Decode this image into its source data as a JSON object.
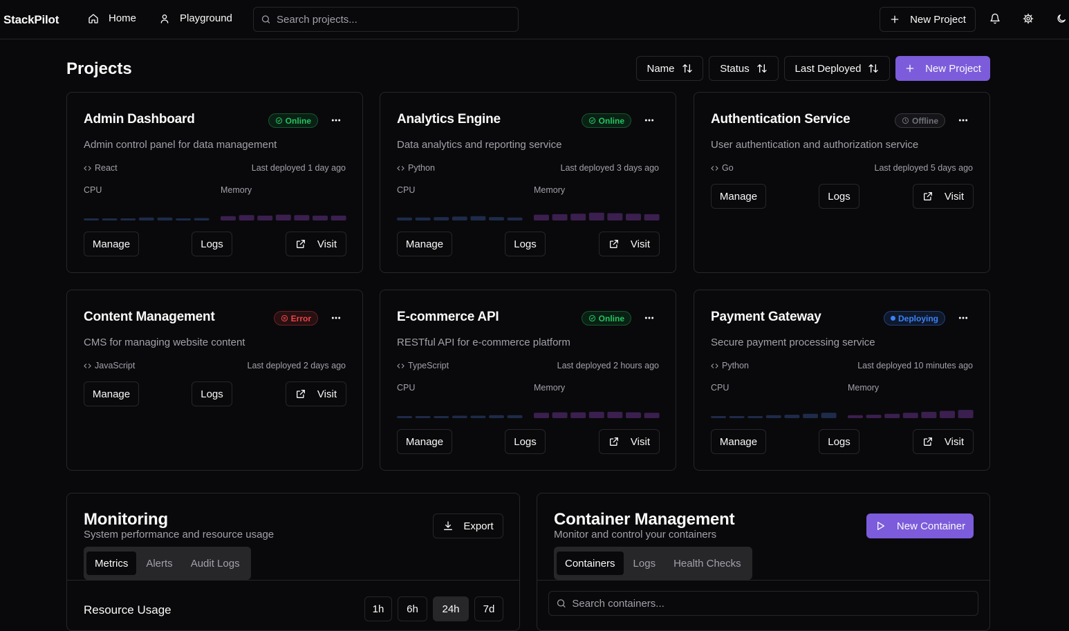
{
  "app": {
    "brand": "StackPilot"
  },
  "nav": [
    {
      "label": "Home",
      "icon": "home-icon"
    },
    {
      "label": "Playground",
      "icon": "user-icon"
    }
  ],
  "search": {
    "placeholder": "Search projects..."
  },
  "header": {
    "new_project_label": "New Project"
  },
  "page": {
    "title": "Projects",
    "sort": [
      "Name",
      "Status",
      "Last Deployed"
    ],
    "new_project_label": "New Project"
  },
  "colors": {
    "accent": "#7c5cdb",
    "online": "#22c55e",
    "error": "#ef4444",
    "deploying": "#3b82f6",
    "offline": "#71717a",
    "cpu_bar": "#1e2b4a",
    "memory_bar": "#3b1f4f"
  },
  "projects": [
    {
      "title": "Admin Dashboard",
      "status": "Online",
      "status_class": "online",
      "description": "Admin control panel for data management",
      "language": "React",
      "deployed": "Last deployed 1 day ago",
      "cpu_label": "CPU",
      "memory_label": "Memory",
      "has_metrics": true,
      "cpu": [
        0.2,
        0.2,
        0.2,
        0.3,
        0.3,
        0.2,
        0.25
      ],
      "memory": [
        0.45,
        0.55,
        0.5,
        0.6,
        0.55,
        0.5,
        0.5
      ],
      "actions": [
        "Manage",
        "Logs",
        "Visit"
      ]
    },
    {
      "title": "Analytics Engine",
      "status": "Online",
      "status_class": "online",
      "description": "Data analytics and reporting service",
      "language": "Python",
      "deployed": "Last deployed 3 days ago",
      "cpu_label": "CPU",
      "memory_label": "Memory",
      "has_metrics": true,
      "cpu": [
        0.3,
        0.3,
        0.35,
        0.4,
        0.45,
        0.35,
        0.3
      ],
      "memory": [
        0.6,
        0.65,
        0.7,
        0.8,
        0.75,
        0.7,
        0.65
      ],
      "actions": [
        "Manage",
        "Logs",
        "Visit"
      ]
    },
    {
      "title": "Authentication Service",
      "status": "Offline",
      "status_class": "offline",
      "description": "User authentication and authorization service",
      "language": "Go",
      "deployed": "Last deployed 5 days ago",
      "has_metrics": false,
      "actions": [
        "Manage",
        "Logs",
        "Visit"
      ]
    },
    {
      "title": "Content Management",
      "status": "Error",
      "status_class": "error",
      "description": "CMS for managing website content",
      "language": "JavaScript",
      "deployed": "Last deployed 2 days ago",
      "has_metrics": false,
      "actions": [
        "Manage",
        "Logs",
        "Visit"
      ]
    },
    {
      "title": "E-commerce API",
      "status": "Online",
      "status_class": "online",
      "description": "RESTful API for e-commerce platform",
      "language": "TypeScript",
      "deployed": "Last deployed 2 hours ago",
      "cpu_label": "CPU",
      "memory_label": "Memory",
      "has_metrics": true,
      "cpu": [
        0.15,
        0.2,
        0.2,
        0.25,
        0.25,
        0.3,
        0.3
      ],
      "memory": [
        0.55,
        0.6,
        0.6,
        0.65,
        0.65,
        0.6,
        0.55
      ],
      "actions": [
        "Manage",
        "Logs",
        "Visit"
      ]
    },
    {
      "title": "Payment Gateway",
      "status": "Deploying",
      "status_class": "deploying",
      "description": "Secure payment processing service",
      "language": "Python",
      "deployed": "Last deployed 10 minutes ago",
      "cpu_label": "CPU",
      "memory_label": "Memory",
      "has_metrics": true,
      "cpu": [
        0.1,
        0.15,
        0.2,
        0.3,
        0.35,
        0.45,
        0.55
      ],
      "memory": [
        0.3,
        0.35,
        0.45,
        0.55,
        0.65,
        0.75,
        0.85
      ],
      "actions": [
        "Manage",
        "Logs",
        "Visit"
      ]
    }
  ],
  "monitoring": {
    "title": "Monitoring",
    "subtitle": "System performance and resource usage",
    "export_label": "Export",
    "tabs": [
      "Metrics",
      "Alerts",
      "Audit Logs"
    ],
    "active_tab": 0,
    "section_title": "Resource Usage",
    "ranges": [
      "1h",
      "6h",
      "24h",
      "7d"
    ],
    "active_range": 2
  },
  "containers": {
    "title": "Container Management",
    "subtitle": "Monitor and control your containers",
    "new_label": "New Container",
    "tabs": [
      "Containers",
      "Logs",
      "Health Checks"
    ],
    "active_tab": 0,
    "search_placeholder": "Search containers..."
  }
}
